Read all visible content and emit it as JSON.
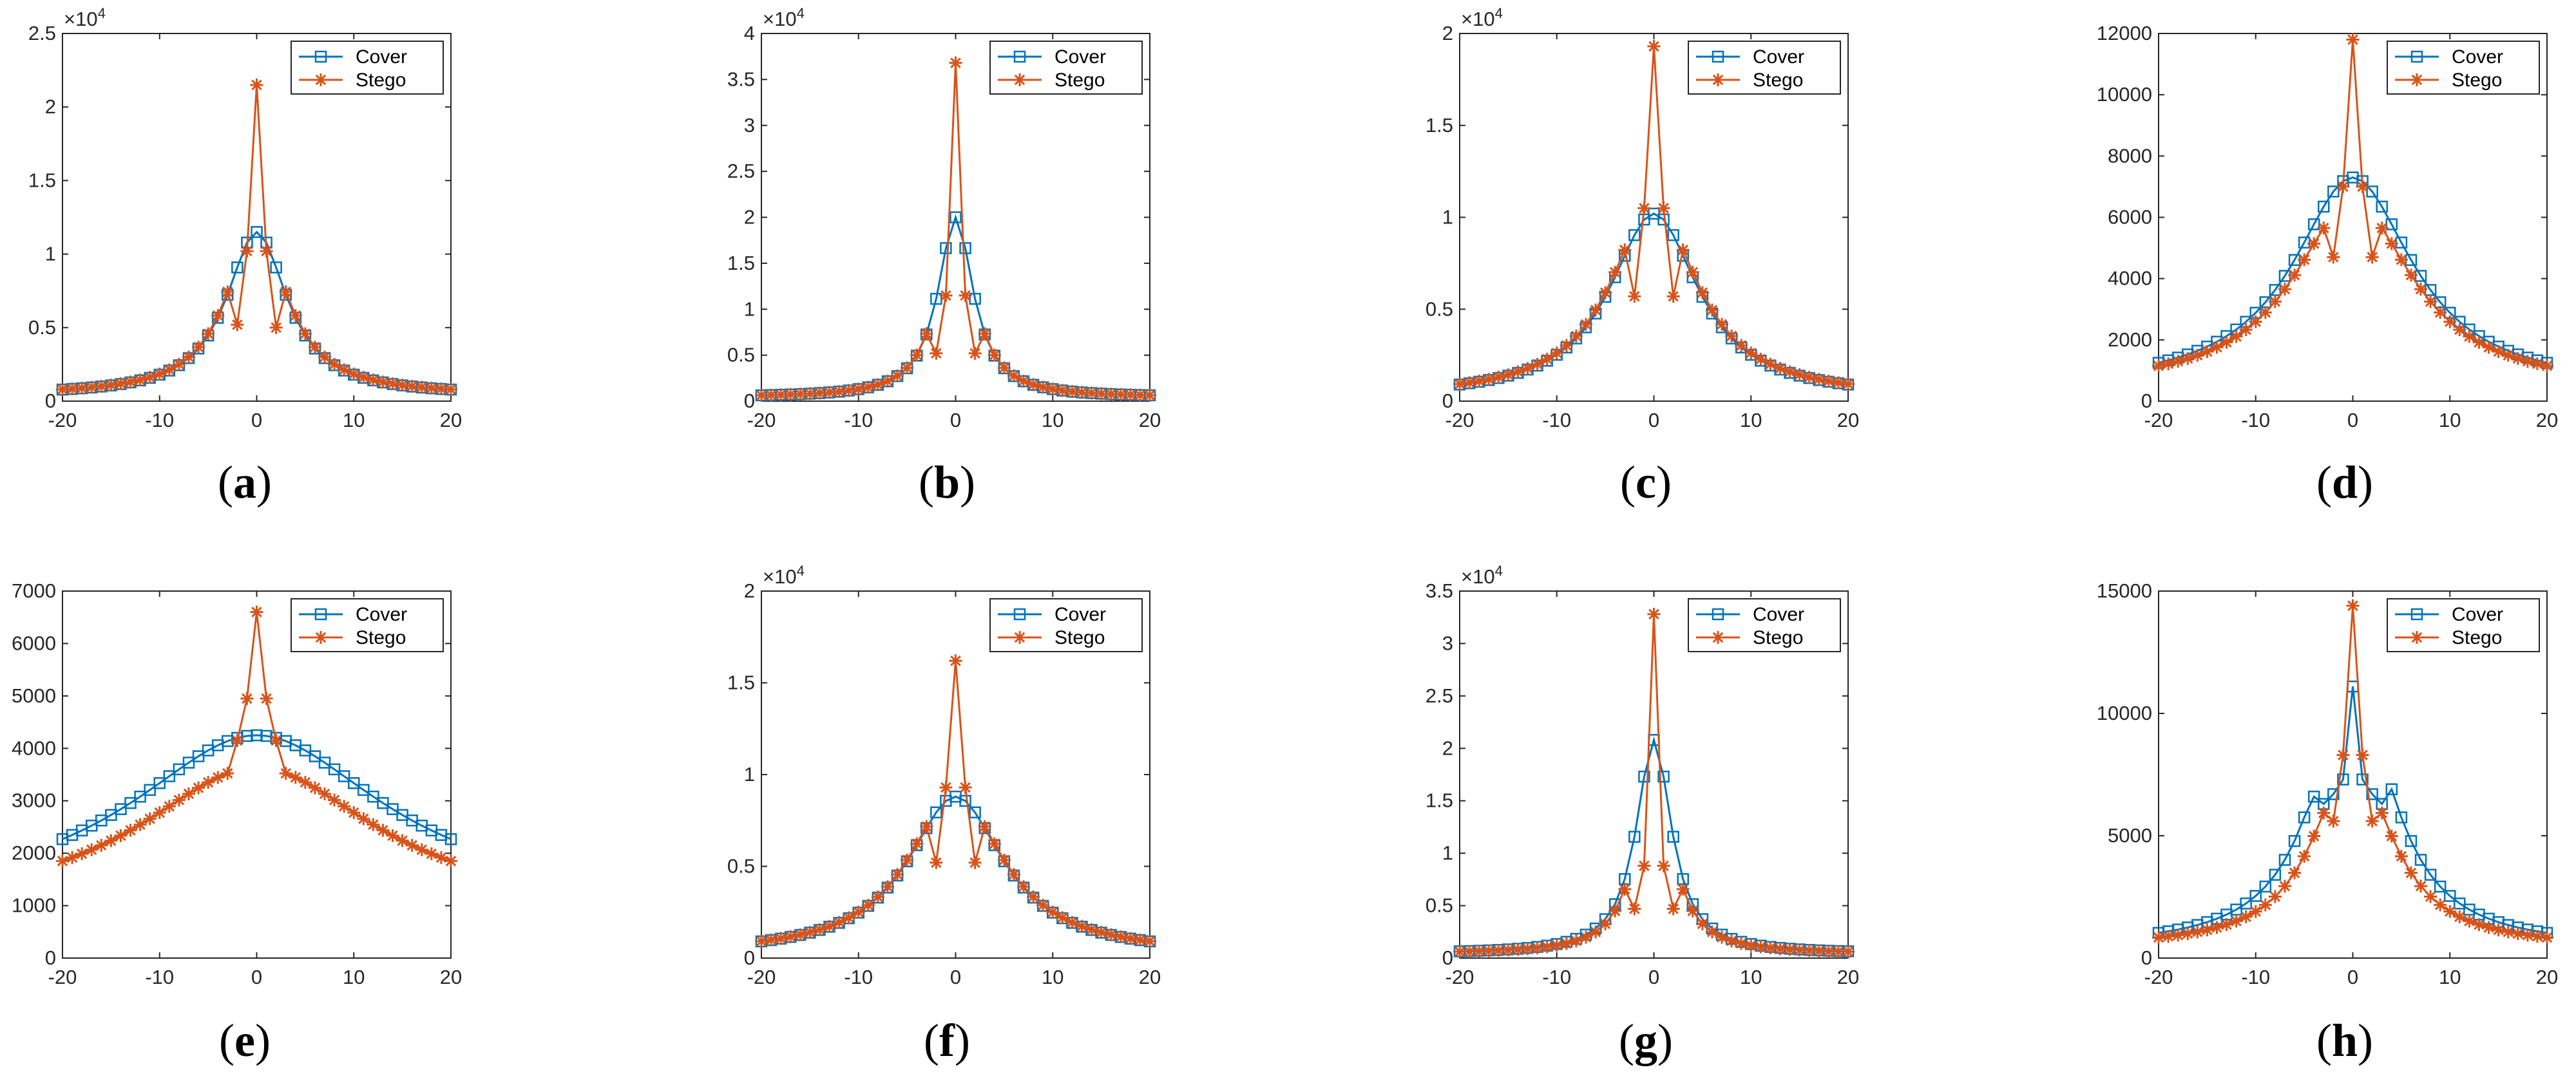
{
  "colors": {
    "cover": "#0072BD",
    "stego": "#D95319",
    "axis": "#262626"
  },
  "legend": {
    "cover": "Cover",
    "stego": "Stego"
  },
  "chart_data": [
    {
      "label": "a",
      "type": "line",
      "title": "",
      "xlabel": "",
      "ylabel": "",
      "xlim": [
        -20,
        20
      ],
      "ylim": [
        0,
        2.5
      ],
      "yticks": [
        0,
        0.5,
        1,
        1.5,
        2,
        2.5
      ],
      "ytick_labels": [
        "0",
        "0.5",
        "1",
        "1.5",
        "2",
        "2.5"
      ],
      "xticks": [
        -20,
        -10,
        0,
        10,
        20
      ],
      "xtick_labels": [
        "-20",
        "-10",
        "0",
        "10",
        "20"
      ],
      "exponent": "×10^4",
      "legend_position": "top-right",
      "series": [
        {
          "name": "Cover",
          "marker": "square",
          "peak": 1.15,
          "zero": 0.04,
          "width": 3.8,
          "offsets": {}
        },
        {
          "name": "Stego",
          "marker": "asterisk",
          "peak": 2.15,
          "zero": 0.04,
          "width": 3.8,
          "offsets": {
            "-2": 0.52,
            "-1": 1.02,
            "1": 1.02,
            "2": 0.5
          }
        }
      ]
    },
    {
      "label": "b",
      "type": "line",
      "title": "",
      "xlabel": "",
      "ylabel": "",
      "xlim": [
        -20,
        20
      ],
      "ylim": [
        0,
        4
      ],
      "yticks": [
        0,
        0.5,
        1,
        1.5,
        2,
        2.5,
        3,
        3.5,
        4
      ],
      "ytick_labels": [
        "0",
        "0.5",
        "1",
        "1.5",
        "2",
        "2.5",
        "3",
        "3.5",
        "4"
      ],
      "xticks": [
        -20,
        -10,
        0,
        10,
        20
      ],
      "xtick_labels": [
        "-20",
        "-10",
        "0",
        "10",
        "20"
      ],
      "exponent": "×10^4",
      "legend_position": "top-right",
      "series": [
        {
          "name": "Cover",
          "marker": "square",
          "peak": 2.0,
          "zero": 0.04,
          "width": 2.2,
          "offsets": {}
        },
        {
          "name": "Stego",
          "marker": "asterisk",
          "peak": 3.68,
          "zero": 0.04,
          "width": 2.2,
          "offsets": {
            "-2": 0.52,
            "-1": 1.15,
            "1": 1.15,
            "2": 0.52
          }
        }
      ]
    },
    {
      "label": "c",
      "type": "line",
      "title": "",
      "xlabel": "",
      "ylabel": "",
      "xlim": [
        -20,
        20
      ],
      "ylim": [
        0,
        2
      ],
      "yticks": [
        0,
        0.5,
        1,
        1.5,
        2
      ],
      "ytick_labels": [
        "0",
        "0.5",
        "1",
        "1.5",
        "2"
      ],
      "xticks": [
        -20,
        -10,
        0,
        10,
        20
      ],
      "xtick_labels": [
        "-20",
        "-10",
        "0",
        "10",
        "20"
      ],
      "exponent": "×10^4",
      "legend_position": "top-right",
      "series": [
        {
          "name": "Cover",
          "marker": "square",
          "peak": 1.02,
          "zero": 0.02,
          "width": 5.5,
          "offsets": {}
        },
        {
          "name": "Stego",
          "marker": "asterisk",
          "peak": 1.93,
          "zero": 0.02,
          "width": 5.5,
          "offsets": {
            "-2": 0.57,
            "-1": 1.05,
            "1": 1.05,
            "2": 0.57
          }
        }
      ]
    },
    {
      "label": "d",
      "type": "line",
      "title": "",
      "xlabel": "",
      "ylabel": "",
      "xlim": [
        -20,
        20
      ],
      "ylim": [
        0,
        12000
      ],
      "yticks": [
        0,
        2000,
        4000,
        6000,
        8000,
        10000,
        12000
      ],
      "ytick_labels": [
        "0",
        "2000",
        "4000",
        "6000",
        "8000",
        "10000",
        "12000"
      ],
      "xticks": [
        -20,
        -10,
        0,
        10,
        20
      ],
      "xtick_labels": [
        "-20",
        "-10",
        "0",
        "10",
        "20"
      ],
      "exponent": "",
      "legend_position": "top-right",
      "series": [
        {
          "name": "Cover",
          "marker": "square",
          "peak": 7300,
          "zero": 400,
          "width": 7.5,
          "offsets": {}
        },
        {
          "name": "Stego",
          "marker": "asterisk",
          "peak": 11800,
          "zero": 400,
          "width": 7.5,
          "offsets": {
            "-2": 4700,
            "-1": 7000,
            "1": 7000,
            "2": 4700
          }
        }
      ]
    },
    {
      "label": "e",
      "type": "line",
      "title": "",
      "xlabel": "",
      "ylabel": "",
      "xlim": [
        -20,
        20
      ],
      "ylim": [
        0,
        7000
      ],
      "yticks": [
        0,
        1000,
        2000,
        3000,
        4000,
        5000,
        6000,
        7000
      ],
      "ytick_labels": [
        "0",
        "1000",
        "2000",
        "3000",
        "4000",
        "5000",
        "6000",
        "7000"
      ],
      "xticks": [
        -20,
        -10,
        0,
        10,
        20
      ],
      "xtick_labels": [
        "-20",
        "-10",
        "0",
        "10",
        "20"
      ],
      "exponent": "",
      "legend_position": "top-right",
      "series": [
        {
          "name": "Cover",
          "marker": "square",
          "peak": 4250,
          "zero": 1000,
          "width": 16,
          "offsets": {}
        },
        {
          "name": "Stego",
          "marker": "asterisk",
          "peak": 6600,
          "zero": 850,
          "width": 15,
          "offsets": {
            "-2": 4150,
            "-1": 4950,
            "1": 4950,
            "2": 4150
          }
        }
      ]
    },
    {
      "label": "f",
      "type": "line",
      "title": "",
      "xlabel": "",
      "ylabel": "",
      "xlim": [
        -20,
        20
      ],
      "ylim": [
        0,
        2
      ],
      "yticks": [
        0,
        0.5,
        1,
        1.5,
        2
      ],
      "ytick_labels": [
        "0",
        "0.5",
        "1",
        "1.5",
        "2"
      ],
      "xticks": [
        -20,
        -10,
        0,
        10,
        20
      ],
      "xtick_labels": [
        "-20",
        "-10",
        "0",
        "10",
        "20"
      ],
      "exponent": "×10^4",
      "legend_position": "top-right",
      "series": [
        {
          "name": "Cover",
          "marker": "square",
          "peak": 0.88,
          "zero": 0.02,
          "width": 6,
          "offsets": {}
        },
        {
          "name": "Stego",
          "marker": "asterisk",
          "peak": 1.62,
          "zero": 0.02,
          "width": 6,
          "offsets": {
            "-2": 0.52,
            "-1": 0.93,
            "1": 0.93,
            "2": 0.52
          }
        }
      ]
    },
    {
      "label": "g",
      "type": "line",
      "title": "",
      "xlabel": "",
      "ylabel": "",
      "xlim": [
        -20,
        20
      ],
      "ylim": [
        0,
        3.5
      ],
      "yticks": [
        0,
        0.5,
        1,
        1.5,
        2,
        2.5,
        3,
        3.5
      ],
      "ytick_labels": [
        "0",
        "0.5",
        "1",
        "1.5",
        "2",
        "2.5",
        "3",
        "3.5"
      ],
      "xticks": [
        -20,
        -10,
        0,
        10,
        20
      ],
      "xtick_labels": [
        "-20",
        "-10",
        "0",
        "10",
        "20"
      ],
      "exponent": "×10^4",
      "legend_position": "top-right",
      "series": [
        {
          "name": "Cover",
          "marker": "square",
          "peak": 2.08,
          "zero": 0.04,
          "width": 2.2,
          "offsets": {}
        },
        {
          "name": "Stego",
          "marker": "asterisk",
          "peak": 3.28,
          "zero": 0.04,
          "width": 2.2,
          "offsets": {
            "-2": 0.47,
            "-1": 0.88,
            "1": 0.88,
            "2": 0.47
          }
        }
      ]
    },
    {
      "label": "h",
      "type": "line",
      "title": "",
      "xlabel": "",
      "ylabel": "",
      "xlim": [
        -20,
        20
      ],
      "ylim": [
        0,
        15000
      ],
      "yticks": [
        0,
        5000,
        10000,
        15000
      ],
      "ytick_labels": [
        "0",
        "5000",
        "10000",
        "15000"
      ],
      "xticks": [
        -20,
        -10,
        0,
        10,
        20
      ],
      "xtick_labels": [
        "-20",
        "-10",
        "0",
        "10",
        "20"
      ],
      "exponent": "",
      "legend_position": "top-right",
      "series": [
        {
          "name": "Cover",
          "marker": "square",
          "peak": 11100,
          "zero": 400,
          "width": 5,
          "offsets": {
            "-4": 6600,
            "-3": 6300,
            "-2": 6700,
            "-1": 7300,
            "1": 7300,
            "2": 6700,
            "3": 6300,
            "4": 6900
          }
        },
        {
          "name": "Stego",
          "marker": "asterisk",
          "peak": 14400,
          "zero": 400,
          "width": 5,
          "offsets": {
            "-2": 5600,
            "-1": 8300,
            "1": 8300,
            "2": 5600
          }
        }
      ]
    }
  ]
}
